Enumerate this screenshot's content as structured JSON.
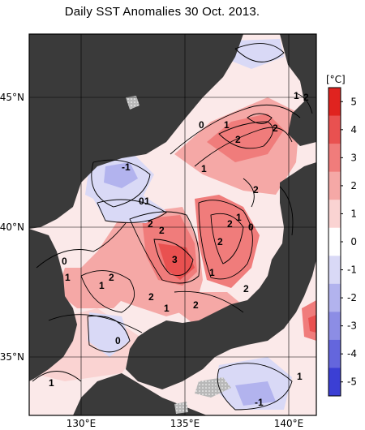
{
  "title": "Daily SST Anomalies 30 Oct. 2013.",
  "map": {
    "x_ticks": [
      "130°E",
      "135°E",
      "140°E"
    ],
    "y_ticks": [
      "45°N",
      "40°N",
      "35°N"
    ],
    "contour_labels": [
      "0",
      "1",
      "2",
      "-1",
      "0",
      "1",
      "2",
      "2",
      "2",
      "2",
      "1",
      "3",
      "2",
      "1",
      "2",
      "2",
      "1",
      "2",
      "2",
      "0",
      "1",
      "1",
      "0",
      "1",
      "2",
      "1",
      "2",
      "1",
      "0",
      "1",
      "1",
      "-1",
      "0",
      "1",
      "2",
      "0",
      "-1"
    ],
    "land_color": "#3a3a3a"
  },
  "colorbar": {
    "unit": "[°C]",
    "tick_labels": [
      "5",
      "4",
      "3",
      "2",
      "1",
      "0",
      "-1",
      "-2",
      "-3",
      "-4",
      "-5"
    ],
    "colors": [
      "#e0231f",
      "#e95150",
      "#f07c7b",
      "#f5a8a6",
      "#fad3d2",
      "#ffffff",
      "#d9d9f6",
      "#b2b3ee",
      "#8c8de5",
      "#6466dd",
      "#3b3fd4"
    ]
  }
}
